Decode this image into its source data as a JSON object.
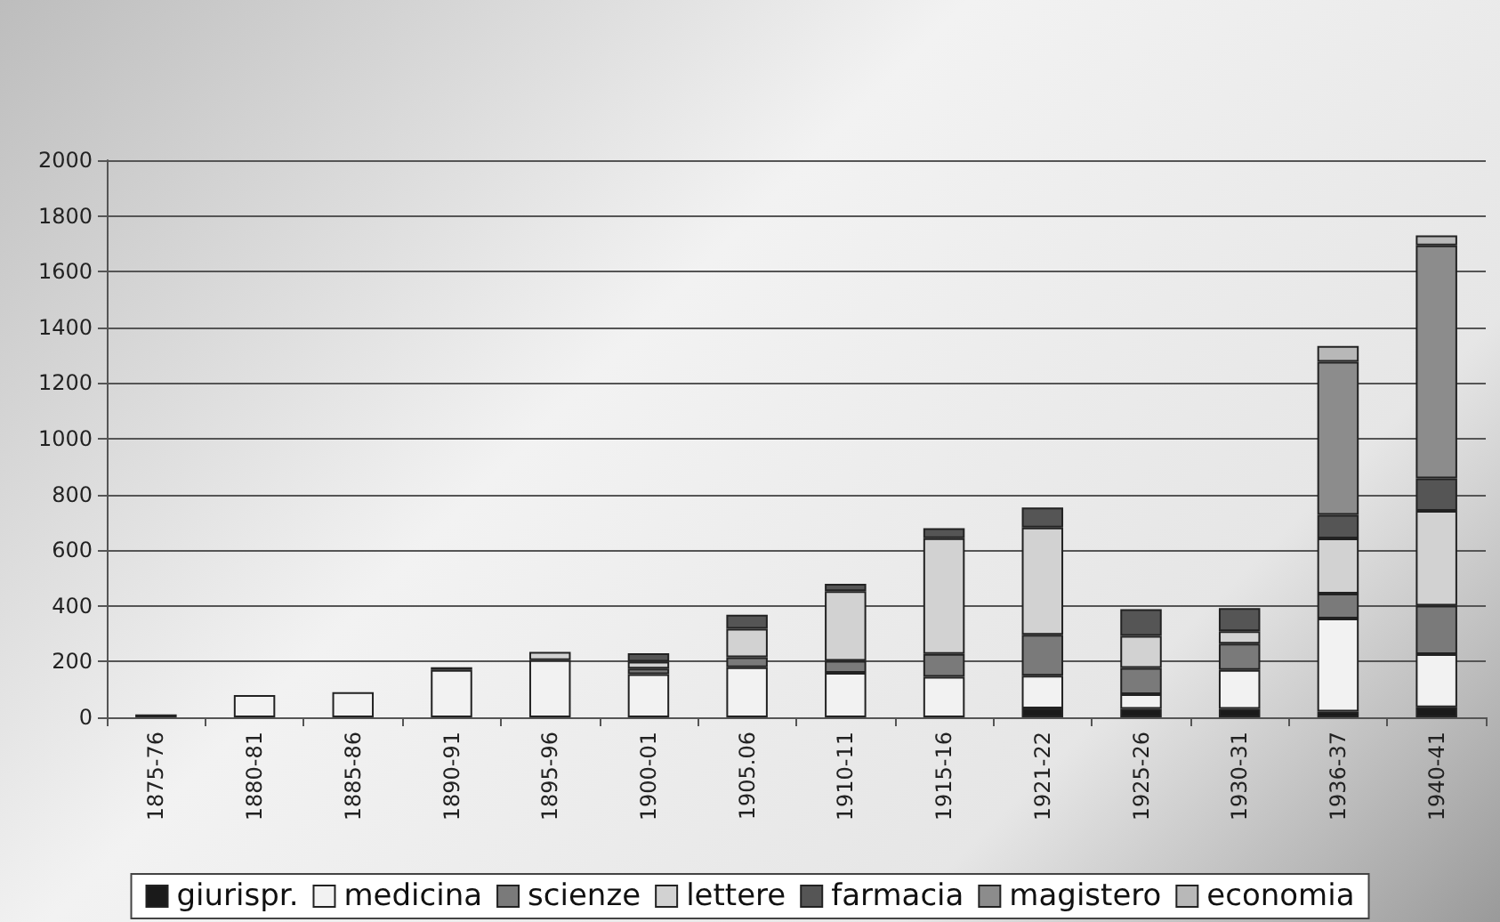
{
  "chart_data": {
    "type": "bar",
    "stacked": true,
    "grid": "y",
    "legend": "bottom",
    "categories": [
      "1875-76",
      "1880-81",
      "1885-86",
      "1890-91",
      "1895-96",
      "1900-01",
      "1905.06",
      "1910-11",
      "1915-16",
      "1921-22",
      "1925-26",
      "1930-31",
      "1936-37",
      "1940-41"
    ],
    "ylim": [
      0,
      2000
    ],
    "yticks": [
      0,
      200,
      400,
      600,
      800,
      1000,
      1200,
      1400,
      1600,
      1800,
      2000
    ],
    "series": [
      {
        "name": "giurispr.",
        "color": "#1a1a1a",
        "values": [
          10,
          null,
          null,
          null,
          null,
          null,
          null,
          null,
          null,
          32,
          30,
          30,
          21,
          36
        ]
      },
      {
        "name": "medicina",
        "color": "#f2f2f2",
        "values": [
          null,
          80,
          90,
          170,
          205,
          155,
          180,
          160,
          145,
          117,
          53,
          140,
          334,
          191
        ]
      },
      {
        "name": "scienze",
        "color": "#7a7a7a",
        "values": [
          null,
          null,
          null,
          10,
          null,
          20,
          36,
          43,
          83,
          147,
          94,
          94,
          89,
          174
        ]
      },
      {
        "name": "lettere",
        "color": "#d2d2d2",
        "values": [
          null,
          null,
          null,
          null,
          30,
          25,
          102,
          250,
          415,
          385,
          115,
          45,
          198,
          340
        ]
      },
      {
        "name": "farmacia",
        "color": "#555555",
        "values": [
          null,
          null,
          null,
          null,
          null,
          30,
          50,
          26,
          36,
          72,
          96,
          83,
          85,
          117
        ]
      },
      {
        "name": "magistero",
        "color": "#8c8c8c",
        "values": [
          null,
          null,
          null,
          null,
          null,
          null,
          null,
          null,
          null,
          null,
          null,
          null,
          549,
          836
        ]
      },
      {
        "name": "economia",
        "color": "#b8b8b8",
        "values": [
          null,
          null,
          null,
          null,
          null,
          null,
          null,
          null,
          null,
          null,
          null,
          null,
          57,
          36
        ]
      }
    ]
  }
}
